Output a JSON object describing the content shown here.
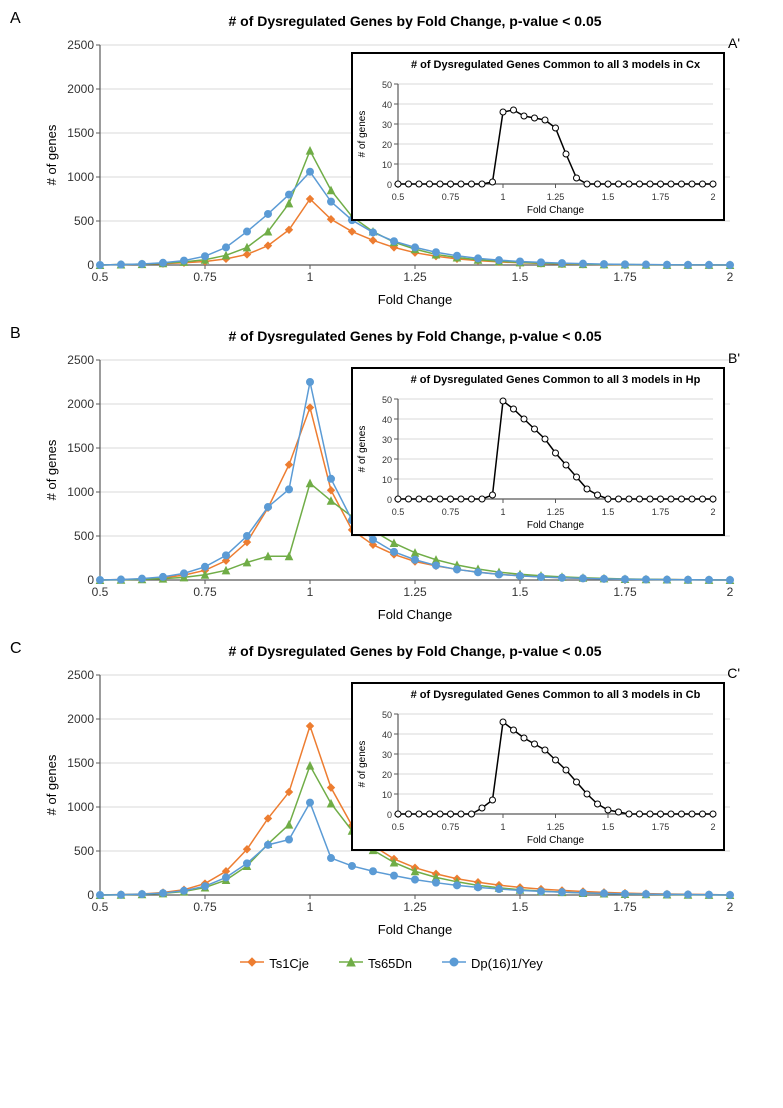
{
  "charts": [
    {
      "panel_label": "A",
      "inset_label": "A'",
      "main": {
        "title": "# of Dysregulated Genes by Fold Change, p-value < 0.05",
        "xlabel": "Fold Change",
        "ylabel": "# of genes",
        "xlim": [
          0.5,
          2.0
        ],
        "ylim": [
          0,
          2500
        ],
        "xticks": [
          0.5,
          0.75,
          1.0,
          1.25,
          1.5,
          1.75,
          2.0
        ],
        "yticks": [
          0,
          500,
          1000,
          1500,
          2000,
          2500
        ],
        "x": [
          0.5,
          0.55,
          0.6,
          0.65,
          0.7,
          0.75,
          0.8,
          0.85,
          0.9,
          0.95,
          1.0,
          1.05,
          1.1,
          1.15,
          1.2,
          1.25,
          1.3,
          1.35,
          1.4,
          1.45,
          1.5,
          1.55,
          1.6,
          1.65,
          1.7,
          1.75,
          1.8,
          1.85,
          1.9,
          1.95,
          2.0
        ],
        "series": [
          {
            "name": "Ts1Cje",
            "color": "#ed7d31",
            "marker": "diamond",
            "y": [
              0,
              5,
              10,
              15,
              25,
              40,
              70,
              120,
              220,
              400,
              750,
              520,
              380,
              280,
              200,
              140,
              100,
              70,
              50,
              35,
              25,
              18,
              12,
              8,
              5,
              3,
              2,
              1,
              1,
              0,
              0
            ]
          },
          {
            "name": "Ts65Dn",
            "color": "#70ad47",
            "marker": "triangle",
            "y": [
              0,
              5,
              10,
              20,
              35,
              60,
              110,
              200,
              380,
              700,
              1300,
              850,
              550,
              380,
              260,
              180,
              120,
              85,
              60,
              42,
              30,
              22,
              15,
              10,
              7,
              5,
              3,
              2,
              1,
              1,
              0
            ]
          },
          {
            "name": "Dp(16)1/Yey",
            "color": "#5b9bd5",
            "marker": "circle",
            "y": [
              0,
              5,
              12,
              25,
              50,
              100,
              200,
              380,
              580,
              800,
              1060,
              720,
              510,
              370,
              270,
              200,
              145,
              105,
              75,
              55,
              40,
              30,
              22,
              15,
              10,
              7,
              5,
              3,
              2,
              1,
              0
            ]
          }
        ]
      },
      "inset": {
        "title": "# of Dysregulated Genes Common to all 3 models in Cx",
        "xlabel": "Fold Change",
        "ylabel": "# of genes",
        "xlim": [
          0.5,
          2.0
        ],
        "ylim": [
          0,
          50
        ],
        "xticks": [
          0.5,
          0.75,
          1.0,
          1.25,
          1.5,
          1.75,
          2.0
        ],
        "yticks": [
          0,
          10,
          20,
          30,
          40,
          50
        ],
        "x": [
          0.5,
          0.55,
          0.6,
          0.65,
          0.7,
          0.75,
          0.8,
          0.85,
          0.9,
          0.95,
          1.0,
          1.05,
          1.1,
          1.15,
          1.2,
          1.25,
          1.3,
          1.35,
          1.4,
          1.45,
          1.5,
          1.55,
          1.6,
          1.65,
          1.7,
          1.75,
          1.8,
          1.85,
          1.9,
          1.95,
          2.0
        ],
        "y": [
          0,
          0,
          0,
          0,
          0,
          0,
          0,
          0,
          0,
          1,
          36,
          37,
          34,
          33,
          32,
          28,
          15,
          3,
          0,
          0,
          0,
          0,
          0,
          0,
          0,
          0,
          0,
          0,
          0,
          0,
          0
        ],
        "color": "#000000",
        "marker_fill": "#ffffff"
      }
    },
    {
      "panel_label": "B",
      "inset_label": "B'",
      "main": {
        "title": "# of Dysregulated Genes by Fold Change, p-value < 0.05",
        "xlabel": "Fold Change",
        "ylabel": "# of genes",
        "xlim": [
          0.5,
          2.0
        ],
        "ylim": [
          0,
          2500
        ],
        "xticks": [
          0.5,
          0.75,
          1.0,
          1.25,
          1.5,
          1.75,
          2.0
        ],
        "yticks": [
          0,
          500,
          1000,
          1500,
          2000,
          2500
        ],
        "x": [
          0.5,
          0.55,
          0.6,
          0.65,
          0.7,
          0.75,
          0.8,
          0.85,
          0.9,
          0.95,
          1.0,
          1.05,
          1.1,
          1.15,
          1.2,
          1.25,
          1.3,
          1.35,
          1.4,
          1.45,
          1.5,
          1.55,
          1.6,
          1.65,
          1.7,
          1.75,
          1.8,
          1.85,
          1.9,
          1.95,
          2.0
        ],
        "series": [
          {
            "name": "Ts1Cje",
            "color": "#ed7d31",
            "marker": "diamond",
            "y": [
              0,
              5,
              12,
              25,
              55,
              110,
              220,
              430,
              820,
              1310,
              1960,
              1020,
              570,
              400,
              290,
              210,
              160,
              120,
              90,
              65,
              48,
              35,
              26,
              19,
              14,
              10,
              7,
              5,
              3,
              2,
              0
            ]
          },
          {
            "name": "Ts65Dn",
            "color": "#70ad47",
            "marker": "triangle",
            "y": [
              0,
              3,
              8,
              15,
              30,
              60,
              110,
              200,
              270,
              270,
              1100,
              900,
              720,
              560,
              420,
              310,
              230,
              170,
              125,
              90,
              65,
              48,
              35,
              25,
              18,
              12,
              8,
              5,
              3,
              2,
              0
            ]
          },
          {
            "name": "Dp(16)1/Yey",
            "color": "#5b9bd5",
            "marker": "circle",
            "y": [
              0,
              5,
              15,
              35,
              75,
              150,
              280,
              500,
              830,
              1030,
              2250,
              1150,
              680,
              460,
              320,
              230,
              165,
              120,
              88,
              64,
              47,
              34,
              25,
              18,
              13,
              9,
              6,
              4,
              3,
              2,
              0
            ]
          }
        ]
      },
      "inset": {
        "title": "# of Dysregulated Genes Common to all 3 models in Hp",
        "xlabel": "Fold Change",
        "ylabel": "# of genes",
        "xlim": [
          0.5,
          2.0
        ],
        "ylim": [
          0,
          50
        ],
        "xticks": [
          0.5,
          0.75,
          1.0,
          1.25,
          1.5,
          1.75,
          2.0
        ],
        "yticks": [
          0,
          10,
          20,
          30,
          40,
          50
        ],
        "x": [
          0.5,
          0.55,
          0.6,
          0.65,
          0.7,
          0.75,
          0.8,
          0.85,
          0.9,
          0.95,
          1.0,
          1.05,
          1.1,
          1.15,
          1.2,
          1.25,
          1.3,
          1.35,
          1.4,
          1.45,
          1.5,
          1.55,
          1.6,
          1.65,
          1.7,
          1.75,
          1.8,
          1.85,
          1.9,
          1.95,
          2.0
        ],
        "y": [
          0,
          0,
          0,
          0,
          0,
          0,
          0,
          0,
          0,
          2,
          49,
          45,
          40,
          35,
          30,
          23,
          17,
          11,
          5,
          2,
          0,
          0,
          0,
          0,
          0,
          0,
          0,
          0,
          0,
          0,
          0
        ],
        "color": "#000000",
        "marker_fill": "#ffffff"
      }
    },
    {
      "panel_label": "C",
      "inset_label": "C'",
      "main": {
        "title": "# of Dysregulated Genes by Fold Change, p-value < 0.05",
        "xlabel": "Fold Change",
        "ylabel": "# of genes",
        "xlim": [
          0.5,
          2.0
        ],
        "ylim": [
          0,
          2500
        ],
        "xticks": [
          0.5,
          0.75,
          1.0,
          1.25,
          1.5,
          1.75,
          2.0
        ],
        "yticks": [
          0,
          500,
          1000,
          1500,
          2000,
          2500
        ],
        "x": [
          0.5,
          0.55,
          0.6,
          0.65,
          0.7,
          0.75,
          0.8,
          0.85,
          0.9,
          0.95,
          1.0,
          1.05,
          1.1,
          1.15,
          1.2,
          1.25,
          1.3,
          1.35,
          1.4,
          1.45,
          1.5,
          1.55,
          1.6,
          1.65,
          1.7,
          1.75,
          1.8,
          1.85,
          1.9,
          1.95,
          2.0
        ],
        "series": [
          {
            "name": "Ts1Cje",
            "color": "#ed7d31",
            "marker": "diamond",
            "y": [
              0,
              5,
              12,
              28,
              60,
              130,
              270,
              520,
              870,
              1170,
              1920,
              1220,
              790,
              560,
              410,
              310,
              240,
              185,
              145,
              112,
              87,
              67,
              52,
              40,
              30,
              22,
              16,
              12,
              8,
              5,
              0
            ]
          },
          {
            "name": "Ts65Dn",
            "color": "#70ad47",
            "marker": "triangle",
            "y": [
              0,
              3,
              8,
              18,
              40,
              85,
              170,
              330,
              580,
              800,
              1470,
              1040,
              730,
              510,
              370,
              270,
              200,
              150,
              110,
              82,
              60,
              44,
              32,
              23,
              17,
              12,
              8,
              5,
              3,
              2,
              0
            ]
          },
          {
            "name": "Dp(16)1/Yey",
            "color": "#5b9bd5",
            "marker": "circle",
            "y": [
              0,
              3,
              10,
              22,
              48,
              100,
              200,
              360,
              570,
              630,
              1050,
              420,
              330,
              270,
              220,
              175,
              140,
              110,
              87,
              68,
              53,
              41,
              32,
              24,
              18,
              13,
              10,
              7,
              5,
              3,
              0
            ]
          }
        ]
      },
      "inset": {
        "title": "# of Dysregulated Genes Common to all 3 models in Cb",
        "xlabel": "Fold Change",
        "ylabel": "# of genes",
        "xlim": [
          0.5,
          2.0
        ],
        "ylim": [
          0,
          50
        ],
        "xticks": [
          0.5,
          0.75,
          1.0,
          1.25,
          1.5,
          1.75,
          2.0
        ],
        "yticks": [
          0,
          10,
          20,
          30,
          40,
          50
        ],
        "x": [
          0.5,
          0.55,
          0.6,
          0.65,
          0.7,
          0.75,
          0.8,
          0.85,
          0.9,
          0.95,
          1.0,
          1.05,
          1.1,
          1.15,
          1.2,
          1.25,
          1.3,
          1.35,
          1.4,
          1.45,
          1.5,
          1.55,
          1.6,
          1.65,
          1.7,
          1.75,
          1.8,
          1.85,
          1.9,
          1.95,
          2.0
        ],
        "y": [
          0,
          0,
          0,
          0,
          0,
          0,
          0,
          0,
          3,
          7,
          46,
          42,
          38,
          35,
          32,
          27,
          22,
          16,
          10,
          5,
          2,
          1,
          0,
          0,
          0,
          0,
          0,
          0,
          0,
          0,
          0
        ],
        "color": "#000000",
        "marker_fill": "#ffffff"
      }
    }
  ],
  "legend": [
    {
      "name": "Ts1Cje",
      "color": "#ed7d31",
      "marker": "diamond"
    },
    {
      "name": "Ts65Dn",
      "color": "#70ad47",
      "marker": "triangle"
    },
    {
      "name": "Dp(16)1/Yey",
      "color": "#5b9bd5",
      "marker": "circle"
    }
  ],
  "layout": {
    "main_width": 700,
    "main_height": 300,
    "inset_width": 370,
    "inset_height": 165,
    "title_fontsize": 14,
    "label_fontsize": 13,
    "tick_fontsize": 12,
    "inset_title_fontsize": 11,
    "inset_label_fontsize": 10,
    "inset_tick_fontsize": 9,
    "background": "#ffffff",
    "axis_color": "#595959",
    "grid_color": "#d9d9d9"
  }
}
